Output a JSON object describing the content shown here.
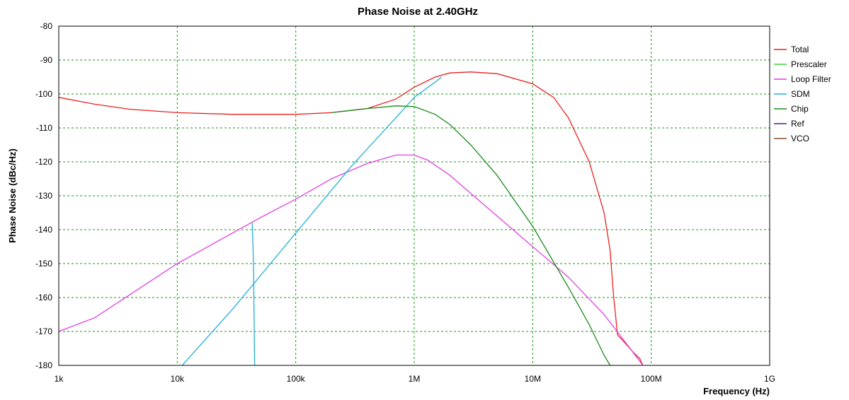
{
  "chart_data": {
    "type": "line",
    "title": "Phase Noise at 2.40GHz",
    "xlabel": "Frequency (Hz)",
    "ylabel": "Phase Noise (dBc/Hz)",
    "x_scale": "log",
    "xlim": [
      1000,
      1000000000
    ],
    "ylim": [
      -180,
      -80
    ],
    "grid": true,
    "legend_position": "right",
    "x_ticks": [
      {
        "value": 1000,
        "label": "1k"
      },
      {
        "value": 10000,
        "label": "10k"
      },
      {
        "value": 100000,
        "label": "100k"
      },
      {
        "value": 1000000,
        "label": "1M"
      },
      {
        "value": 10000000,
        "label": "10M"
      },
      {
        "value": 100000000,
        "label": "100M"
      },
      {
        "value": 1000000000,
        "label": "1G"
      }
    ],
    "y_ticks": [
      {
        "value": -80,
        "label": "-80"
      },
      {
        "value": -90,
        "label": "-90"
      },
      {
        "value": -100,
        "label": "-100"
      },
      {
        "value": -110,
        "label": "-110"
      },
      {
        "value": -120,
        "label": "-120"
      },
      {
        "value": -130,
        "label": "-130"
      },
      {
        "value": -140,
        "label": "-140"
      },
      {
        "value": -150,
        "label": "-150"
      },
      {
        "value": -160,
        "label": "-160"
      },
      {
        "value": -170,
        "label": "-170"
      },
      {
        "value": -180,
        "label": "-180"
      }
    ],
    "series": [
      {
        "name": "Total",
        "color": "#e8201e",
        "points": [
          [
            1000,
            -101
          ],
          [
            2000,
            -103
          ],
          [
            4000,
            -104.5
          ],
          [
            10000,
            -105.5
          ],
          [
            30000,
            -106
          ],
          [
            100000,
            -106
          ],
          [
            200000,
            -105.5
          ],
          [
            400000,
            -104.3
          ],
          [
            700000,
            -101.5
          ],
          [
            1000000,
            -98
          ],
          [
            1500000,
            -95
          ],
          [
            2000000,
            -93.8
          ],
          [
            3000000,
            -93.5
          ],
          [
            5000000,
            -94
          ],
          [
            10000000,
            -97
          ],
          [
            15000000,
            -101
          ],
          [
            20000000,
            -107
          ],
          [
            30000000,
            -120
          ],
          [
            40000000,
            -135
          ],
          [
            45000000,
            -146
          ],
          [
            48000000,
            -159
          ],
          [
            52000000,
            -171
          ],
          [
            57000000,
            -172.5
          ],
          [
            70000000,
            -176
          ],
          [
            80000000,
            -178
          ],
          [
            85000000,
            -180
          ]
        ]
      },
      {
        "name": "Prescaler",
        "color": "#3fd23a",
        "points": []
      },
      {
        "name": "Loop Filter",
        "color": "#e13fe1",
        "points": [
          [
            1000,
            -170
          ],
          [
            2000,
            -166
          ],
          [
            10000,
            -150
          ],
          [
            50000,
            -136.5
          ],
          [
            100000,
            -131
          ],
          [
            200000,
            -125
          ],
          [
            400000,
            -120.5
          ],
          [
            700000,
            -118
          ],
          [
            1000000,
            -118
          ],
          [
            1300000,
            -119.5
          ],
          [
            2000000,
            -124
          ],
          [
            5000000,
            -136
          ],
          [
            10000000,
            -145
          ],
          [
            20000000,
            -154
          ],
          [
            40000000,
            -165
          ],
          [
            60000000,
            -173
          ],
          [
            85000000,
            -180
          ]
        ]
      },
      {
        "name": "SDM",
        "color": "#22b0d8",
        "points": [
          [
            11000,
            -180
          ],
          [
            30000,
            -163
          ],
          [
            100000,
            -141
          ],
          [
            300000,
            -121
          ],
          [
            700000,
            -107
          ],
          [
            1000000,
            -101
          ],
          [
            1500000,
            -96.5
          ],
          [
            1700000,
            -95
          ]
        ]
      },
      {
        "name": "SDM",
        "color": "#22b0d8",
        "points": [
          [
            43000,
            -138
          ],
          [
            44000,
            -150
          ],
          [
            44500,
            -165
          ],
          [
            45000,
            -180
          ]
        ]
      },
      {
        "name": "Chip",
        "color": "#1a8a1a",
        "points": [
          [
            200000,
            -105.5
          ],
          [
            400000,
            -104.3
          ],
          [
            700000,
            -103.5
          ],
          [
            1000000,
            -103.7
          ],
          [
            1500000,
            -106
          ],
          [
            2000000,
            -109
          ],
          [
            3000000,
            -115
          ],
          [
            5000000,
            -124
          ],
          [
            10000000,
            -139
          ],
          [
            20000000,
            -157
          ],
          [
            30000000,
            -168
          ],
          [
            40000000,
            -177
          ],
          [
            45000000,
            -180
          ]
        ]
      },
      {
        "name": "Ref",
        "color": "#5a1a8a",
        "points": []
      },
      {
        "name": "VCO",
        "color": "#8a4a2a",
        "points": []
      }
    ],
    "legend": [
      {
        "name": "Total",
        "color": "#e8201e"
      },
      {
        "name": "Prescaler",
        "color": "#3fd23a"
      },
      {
        "name": "Loop Filter",
        "color": "#e13fe1"
      },
      {
        "name": "SDM",
        "color": "#22b0d8"
      },
      {
        "name": "Chip",
        "color": "#1a8a1a"
      },
      {
        "name": "Ref",
        "color": "#5a1a8a"
      },
      {
        "name": "VCO",
        "color": "#8a4a2a"
      }
    ]
  }
}
